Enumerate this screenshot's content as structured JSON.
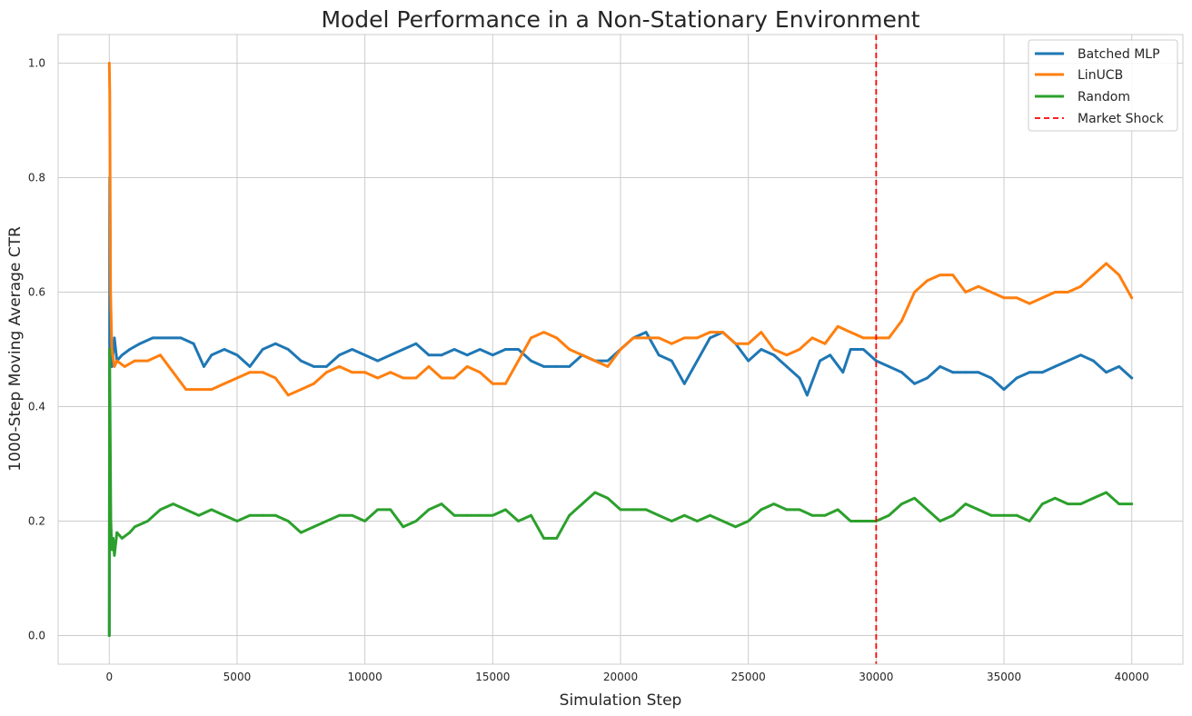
{
  "chart_data": {
    "type": "line",
    "title": "Model Performance in a Non-Stationary Environment",
    "xlabel": "Simulation Step",
    "ylabel": "1000-Step Moving Average CTR",
    "xlim": [
      -2000,
      42000
    ],
    "ylim": [
      -0.05,
      1.05
    ],
    "xticks": [
      0,
      5000,
      10000,
      15000,
      20000,
      25000,
      30000,
      35000,
      40000
    ],
    "xtick_labels": [
      "0",
      "5000",
      "10000",
      "15000",
      "20000",
      "25000",
      "30000",
      "35000",
      "40000"
    ],
    "yticks": [
      0.0,
      0.2,
      0.4,
      0.6,
      0.8,
      1.0
    ],
    "ytick_labels": [
      "0.0",
      "0.2",
      "0.4",
      "0.6",
      "0.8",
      "1.0"
    ],
    "grid": true,
    "legend_position": "top-right",
    "series": [
      {
        "name": "Batched MLP",
        "color": "#1f77b4",
        "x": [
          0,
          20,
          50,
          100,
          200,
          300,
          500,
          800,
          1200,
          1700,
          2200,
          2800,
          3300,
          3700,
          4000,
          4500,
          5000,
          5500,
          6000,
          6500,
          7000,
          7500,
          8000,
          8500,
          9000,
          9500,
          10000,
          10500,
          11000,
          11500,
          12000,
          12500,
          13000,
          13500,
          14000,
          14500,
          15000,
          15500,
          16000,
          16500,
          17000,
          17500,
          18000,
          18500,
          19000,
          19500,
          20000,
          20500,
          21000,
          21500,
          22000,
          22500,
          23000,
          23500,
          24000,
          24500,
          25000,
          25500,
          26000,
          26500,
          27000,
          27300,
          27800,
          28200,
          28700,
          29000,
          29500,
          30000,
          30500,
          31000,
          31500,
          32000,
          32500,
          33000,
          33500,
          34000,
          34500,
          35000,
          35500,
          36000,
          36500,
          37000,
          37500,
          38000,
          38500,
          39000,
          39500,
          40000
        ],
        "values": [
          0.0,
          0.8,
          0.55,
          0.47,
          0.52,
          0.48,
          0.49,
          0.5,
          0.51,
          0.52,
          0.52,
          0.52,
          0.51,
          0.47,
          0.49,
          0.5,
          0.49,
          0.47,
          0.5,
          0.51,
          0.5,
          0.48,
          0.47,
          0.47,
          0.49,
          0.5,
          0.49,
          0.48,
          0.49,
          0.5,
          0.51,
          0.49,
          0.49,
          0.5,
          0.49,
          0.5,
          0.49,
          0.5,
          0.5,
          0.48,
          0.47,
          0.47,
          0.47,
          0.49,
          0.48,
          0.48,
          0.5,
          0.52,
          0.53,
          0.49,
          0.48,
          0.44,
          0.48,
          0.52,
          0.53,
          0.51,
          0.48,
          0.5,
          0.49,
          0.47,
          0.45,
          0.42,
          0.48,
          0.49,
          0.46,
          0.5,
          0.5,
          0.48,
          0.47,
          0.46,
          0.44,
          0.45,
          0.47,
          0.46,
          0.46,
          0.46,
          0.45,
          0.43,
          0.45,
          0.46,
          0.46,
          0.47,
          0.48,
          0.49,
          0.48,
          0.46,
          0.47,
          0.45
        ]
      },
      {
        "name": "LinUCB",
        "color": "#ff7f0e",
        "x": [
          0,
          20,
          50,
          100,
          200,
          300,
          600,
          1000,
          1500,
          2000,
          2500,
          3000,
          3500,
          4000,
          4500,
          5000,
          5500,
          6000,
          6500,
          7000,
          7500,
          8000,
          8500,
          9000,
          9500,
          10000,
          10500,
          11000,
          11500,
          12000,
          12500,
          13000,
          13500,
          14000,
          14500,
          15000,
          15500,
          16000,
          16500,
          17000,
          17500,
          18000,
          18500,
          19000,
          19500,
          20000,
          20500,
          21000,
          21500,
          22000,
          22500,
          23000,
          23500,
          24000,
          24500,
          25000,
          25500,
          26000,
          26500,
          27000,
          27500,
          28000,
          28500,
          29000,
          29500,
          30000,
          30500,
          31000,
          31500,
          32000,
          32500,
          33000,
          33500,
          34000,
          34500,
          35000,
          35500,
          36000,
          36500,
          37000,
          37500,
          38000,
          38500,
          39000,
          39500,
          40000
        ],
        "values": [
          1.0,
          0.95,
          0.6,
          0.5,
          0.47,
          0.48,
          0.47,
          0.48,
          0.48,
          0.49,
          0.46,
          0.43,
          0.43,
          0.43,
          0.44,
          0.45,
          0.46,
          0.46,
          0.45,
          0.42,
          0.43,
          0.44,
          0.46,
          0.47,
          0.46,
          0.46,
          0.45,
          0.46,
          0.45,
          0.45,
          0.47,
          0.45,
          0.45,
          0.47,
          0.46,
          0.44,
          0.44,
          0.48,
          0.52,
          0.53,
          0.52,
          0.5,
          0.49,
          0.48,
          0.47,
          0.5,
          0.52,
          0.52,
          0.52,
          0.51,
          0.52,
          0.52,
          0.53,
          0.53,
          0.51,
          0.51,
          0.53,
          0.5,
          0.49,
          0.5,
          0.52,
          0.51,
          0.54,
          0.53,
          0.52,
          0.52,
          0.52,
          0.55,
          0.6,
          0.62,
          0.63,
          0.63,
          0.6,
          0.61,
          0.6,
          0.59,
          0.59,
          0.58,
          0.59,
          0.6,
          0.6,
          0.61,
          0.63,
          0.65,
          0.63,
          0.59
        ]
      },
      {
        "name": "Random",
        "color": "#2ca02c",
        "x": [
          0,
          10,
          30,
          60,
          100,
          150,
          200,
          300,
          500,
          800,
          1000,
          1500,
          2000,
          2500,
          3000,
          3500,
          4000,
          4500,
          5000,
          5500,
          6000,
          6500,
          7000,
          7500,
          8000,
          8500,
          9000,
          9500,
          10000,
          10500,
          11000,
          11500,
          12000,
          12500,
          13000,
          13500,
          14000,
          14500,
          15000,
          15500,
          16000,
          16500,
          17000,
          17500,
          18000,
          18500,
          19000,
          19500,
          20000,
          20500,
          21000,
          21500,
          22000,
          22500,
          23000,
          23500,
          24000,
          24500,
          25000,
          25500,
          26000,
          26500,
          27000,
          27500,
          28000,
          28500,
          29000,
          29500,
          30000,
          30500,
          31000,
          31500,
          32000,
          32500,
          33000,
          33500,
          34000,
          34500,
          35000,
          35500,
          36000,
          36500,
          37000,
          37500,
          38000,
          38500,
          39000,
          39500,
          40000
        ],
        "values": [
          0.0,
          0.5,
          0.4,
          0.2,
          0.15,
          0.17,
          0.14,
          0.18,
          0.17,
          0.18,
          0.19,
          0.2,
          0.22,
          0.23,
          0.22,
          0.21,
          0.22,
          0.21,
          0.2,
          0.21,
          0.21,
          0.21,
          0.2,
          0.18,
          0.19,
          0.2,
          0.21,
          0.21,
          0.2,
          0.22,
          0.22,
          0.19,
          0.2,
          0.22,
          0.23,
          0.21,
          0.21,
          0.21,
          0.21,
          0.22,
          0.2,
          0.21,
          0.17,
          0.17,
          0.21,
          0.23,
          0.25,
          0.24,
          0.22,
          0.22,
          0.22,
          0.21,
          0.2,
          0.21,
          0.2,
          0.21,
          0.2,
          0.19,
          0.2,
          0.22,
          0.23,
          0.22,
          0.22,
          0.21,
          0.21,
          0.22,
          0.2,
          0.2,
          0.2,
          0.21,
          0.23,
          0.24,
          0.22,
          0.2,
          0.21,
          0.23,
          0.22,
          0.21,
          0.21,
          0.21,
          0.2,
          0.23,
          0.24,
          0.23,
          0.23,
          0.24,
          0.25,
          0.23,
          0.23
        ]
      }
    ],
    "reference_lines": [
      {
        "name": "Market Shock",
        "orientation": "vertical",
        "x": 30000,
        "color": "#ff0000",
        "style": "dashed"
      }
    ]
  }
}
